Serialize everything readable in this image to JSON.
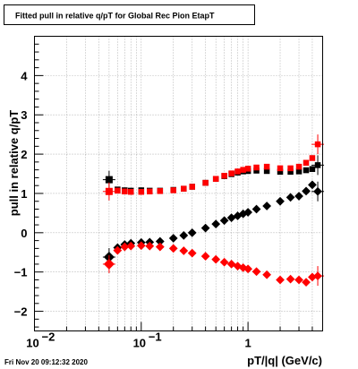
{
  "chart_data": {
    "type": "scatter",
    "title": "Fitted pull in relative q/pT for Global Rec Pion EtapT",
    "xlabel": "pT/|q| (GeV/c)",
    "ylabel": "pull in relative q/pT",
    "x_scale": "log",
    "xlim": [
      0.01,
      5.0
    ],
    "ylim": [
      -2.5,
      5.0
    ],
    "grid": true,
    "x_tick_labels": [
      {
        "value": 0.01,
        "base": "10",
        "exp": "−2"
      },
      {
        "value": 0.1,
        "base": "10",
        "exp": "−1"
      },
      {
        "value": 1,
        "base": "1",
        "exp": ""
      }
    ],
    "y_tick_labels": [
      "−2",
      "−1",
      "0",
      "1",
      "2",
      "3",
      "4"
    ],
    "colors": {
      "black": "#000000",
      "red": "#ff0000"
    },
    "series": [
      {
        "color": "black",
        "marker": "square",
        "x": [
          0.05,
          0.06,
          0.07,
          0.08,
          0.1,
          0.12,
          0.15,
          0.2,
          0.25,
          0.3,
          0.4,
          0.5,
          0.6,
          0.7,
          0.8,
          0.9,
          1.0,
          1.2,
          1.5,
          2.0,
          2.5,
          3.0,
          3.5,
          4.0,
          4.5
        ],
        "y": [
          1.35,
          1.1,
          1.08,
          1.07,
          1.08,
          1.07,
          1.07,
          1.09,
          1.12,
          1.17,
          1.27,
          1.37,
          1.44,
          1.49,
          1.53,
          1.56,
          1.57,
          1.58,
          1.57,
          1.55,
          1.55,
          1.56,
          1.59,
          1.62,
          1.72
        ]
      },
      {
        "color": "red",
        "marker": "square",
        "x": [
          0.05,
          0.06,
          0.07,
          0.08,
          0.1,
          0.12,
          0.15,
          0.2,
          0.25,
          0.3,
          0.4,
          0.5,
          0.6,
          0.7,
          0.8,
          0.9,
          1.0,
          1.2,
          1.5,
          2.0,
          2.5,
          3.0,
          3.5,
          4.0,
          4.5
        ],
        "y": [
          1.05,
          1.07,
          1.05,
          1.04,
          1.04,
          1.05,
          1.06,
          1.08,
          1.12,
          1.17,
          1.27,
          1.37,
          1.45,
          1.51,
          1.56,
          1.6,
          1.63,
          1.66,
          1.68,
          1.64,
          1.64,
          1.68,
          1.78,
          1.9,
          2.25
        ]
      },
      {
        "color": "black",
        "marker": "diamond",
        "x": [
          0.05,
          0.06,
          0.07,
          0.08,
          0.1,
          0.12,
          0.15,
          0.2,
          0.25,
          0.3,
          0.4,
          0.5,
          0.6,
          0.7,
          0.8,
          0.9,
          1.0,
          1.2,
          1.5,
          2.0,
          2.5,
          3.0,
          3.5,
          4.0,
          4.5
        ],
        "y": [
          -0.62,
          -0.38,
          -0.3,
          -0.27,
          -0.25,
          -0.24,
          -0.22,
          -0.14,
          -0.07,
          0.0,
          0.12,
          0.22,
          0.31,
          0.38,
          0.43,
          0.48,
          0.52,
          0.6,
          0.68,
          0.8,
          0.9,
          0.93,
          1.06,
          1.22,
          1.05
        ]
      },
      {
        "color": "red",
        "marker": "diamond",
        "x": [
          0.05,
          0.06,
          0.07,
          0.08,
          0.1,
          0.12,
          0.15,
          0.2,
          0.25,
          0.3,
          0.4,
          0.5,
          0.6,
          0.7,
          0.8,
          0.9,
          1.0,
          1.2,
          1.5,
          2.0,
          2.5,
          3.0,
          3.5,
          4.0,
          4.5
        ],
        "y": [
          -0.8,
          -0.45,
          -0.36,
          -0.34,
          -0.33,
          -0.34,
          -0.36,
          -0.4,
          -0.46,
          -0.52,
          -0.6,
          -0.68,
          -0.75,
          -0.8,
          -0.85,
          -0.89,
          -0.92,
          -0.99,
          -1.07,
          -1.2,
          -1.18,
          -1.2,
          -1.26,
          -1.13,
          -1.1
        ]
      }
    ]
  },
  "footer": {
    "timestamp": "Fri Nov 20 09:12:32 2020"
  }
}
